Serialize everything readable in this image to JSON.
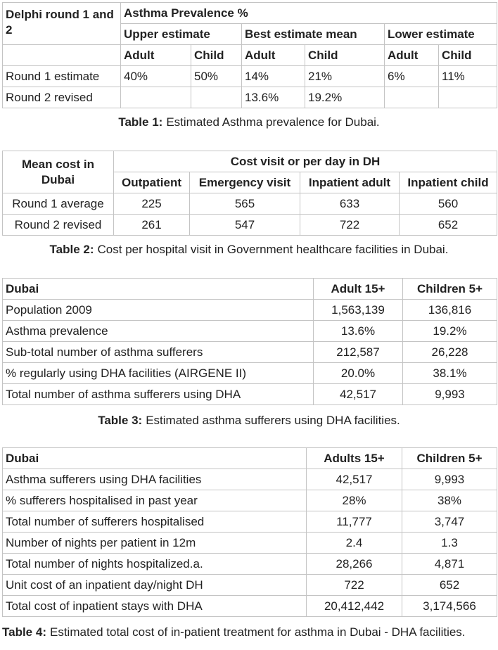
{
  "table1": {
    "corner": "Delphi round 1 and 2",
    "group": "Asthma Prevalence %",
    "subgroups": [
      "Upper estimate",
      "Best estimate mean",
      "Lower estimate"
    ],
    "columns": [
      "Adult",
      "Child",
      "Adult",
      "Child",
      "Adult",
      "Child"
    ],
    "rows": [
      {
        "label": "Round 1 estimate",
        "values": [
          "40%",
          "50%",
          "14%",
          "21%",
          "6%",
          "11%"
        ]
      },
      {
        "label": "Round 2 revised",
        "values": [
          null,
          null,
          "13.6%",
          "19.2%",
          null,
          null
        ]
      }
    ],
    "caption": {
      "label": "Table 1:",
      "text": "Estimated Asthma prevalence for Dubai."
    }
  },
  "table2": {
    "corner": "Mean cost in Dubai",
    "group": "Cost visit or per day in DH",
    "columns": [
      "Outpatient",
      "Emergency visit",
      "Inpatient adult",
      "Inpatient child"
    ],
    "rows": [
      {
        "label": "Round 1 average",
        "values": [
          "225",
          "565",
          "633",
          "560"
        ]
      },
      {
        "label": "Round 2 revised",
        "values": [
          "261",
          "547",
          "722",
          "652"
        ]
      }
    ],
    "caption": {
      "label": "Table 2:",
      "text": "Cost per hospital visit in Government healthcare facilities in Dubai."
    }
  },
  "table3": {
    "columns": [
      "Dubai",
      "Adult 15+",
      "Children 5+"
    ],
    "rows": [
      [
        "Population 2009",
        "1,563,139",
        "136,816"
      ],
      [
        "Asthma prevalence",
        "13.6%",
        "19.2%"
      ],
      [
        "Sub-total number of asthma sufferers",
        "212,587",
        "26,228"
      ],
      [
        "% regularly using DHA facilities (AIRGENE II)",
        "20.0%",
        "38.1%"
      ],
      [
        "Total number of asthma sufferers using DHA",
        "42,517",
        "9,993"
      ]
    ],
    "caption": {
      "label": "Table 3:",
      "text": "Estimated asthma sufferers using DHA facilities."
    }
  },
  "table4": {
    "columns": [
      "Dubai",
      "Adults 15+",
      "Children 5+"
    ],
    "rows": [
      [
        "Asthma sufferers using DHA facilities",
        "42,517",
        "9,993"
      ],
      [
        "% sufferers hospitalised in past year",
        "28%",
        "38%"
      ],
      [
        "Total number of sufferers hospitalised",
        "11,777",
        "3,747"
      ],
      [
        "Number of nights per patient in 12m",
        "2.4",
        "1.3"
      ],
      [
        "Total number of nights hospitalized.a.",
        "28,266",
        "4,871"
      ],
      [
        "Unit cost of an inpatient day/night DH",
        "722",
        "652"
      ],
      [
        "Total cost of inpatient stays with DHA",
        "20,412,442",
        "3,174,566"
      ]
    ],
    "caption": {
      "label": "Table 4:",
      "text": "Estimated total cost of in-patient treatment for asthma in Dubai - DHA facilities."
    }
  }
}
